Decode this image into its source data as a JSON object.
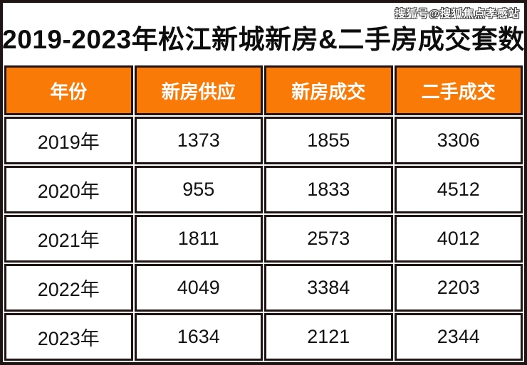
{
  "watermark": "搜狐号@搜狐焦点孝感站",
  "title": "2019-2023年松江新城新房&二手房成交套数",
  "table": {
    "headers": [
      "年份",
      "新房供应",
      "新房成交",
      "二手成交"
    ],
    "rows": [
      [
        "2019年",
        "1373",
        "1855",
        "3306"
      ],
      [
        "2020年",
        "955",
        "1833",
        "4512"
      ],
      [
        "2021年",
        "1811",
        "2573",
        "4012"
      ],
      [
        "2022年",
        "4049",
        "3384",
        "2203"
      ],
      [
        "2023年",
        "1634",
        "2121",
        "2344"
      ]
    ]
  },
  "colors": {
    "header_bg": "#FA7A08",
    "header_text": "#FFFFFF",
    "body_text": "#121212",
    "border": "#201515"
  },
  "chart_data": {
    "type": "table",
    "title": "2019-2023年松江新城新房&二手房成交套数",
    "categories": [
      "2019年",
      "2020年",
      "2021年",
      "2022年",
      "2023年"
    ],
    "series": [
      {
        "name": "新房供应",
        "values": [
          1373,
          955,
          1811,
          4049,
          1634
        ]
      },
      {
        "name": "新房成交",
        "values": [
          1855,
          1833,
          2573,
          3384,
          2121
        ]
      },
      {
        "name": "二手成交",
        "values": [
          3306,
          4512,
          4012,
          2203,
          2344
        ]
      }
    ]
  }
}
